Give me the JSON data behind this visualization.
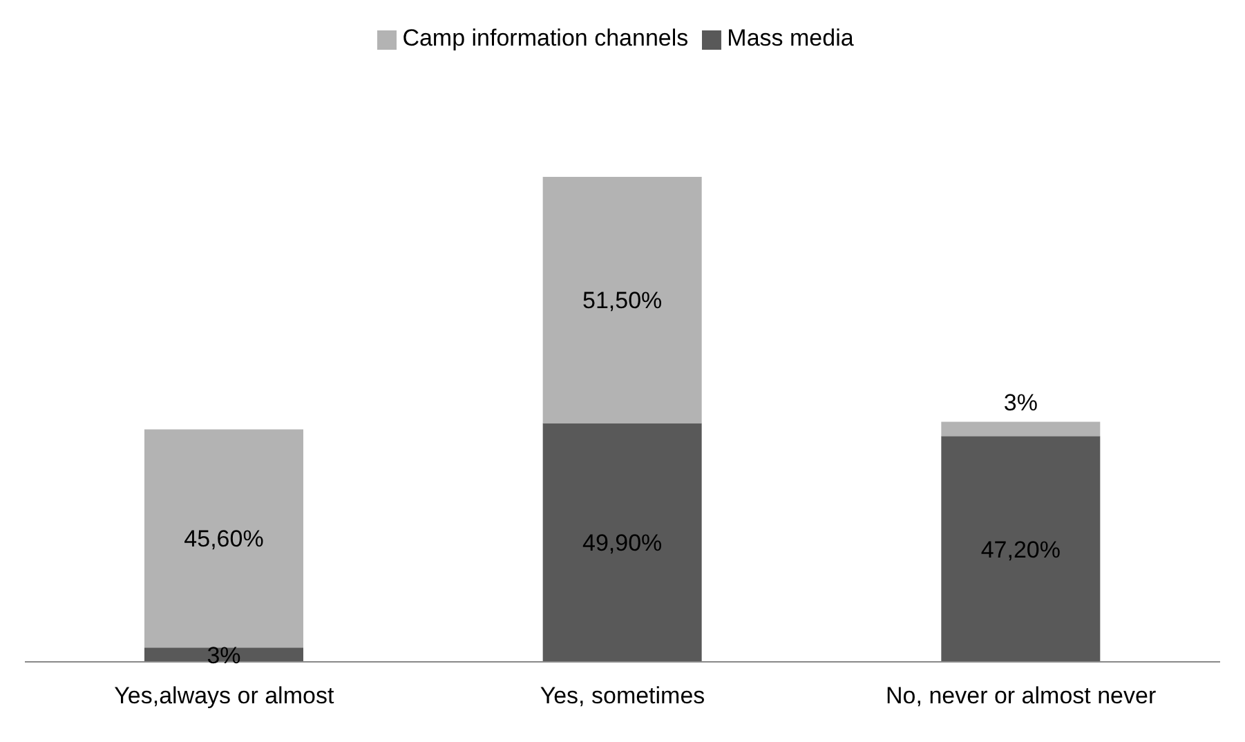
{
  "chart_data": {
    "type": "bar",
    "stacked": true,
    "categories": [
      "Yes,always or almost",
      "Yes, sometimes",
      "No, never or almost never"
    ],
    "series": [
      {
        "name": "Mass media",
        "color": "#595959",
        "values": [
          3,
          49.9,
          47.2
        ],
        "value_labels": [
          "3%",
          "49,90%",
          "47,20%"
        ]
      },
      {
        "name": "Camp information channels",
        "color": "#b3b3b3",
        "values": [
          45.6,
          51.5,
          3
        ],
        "value_labels": [
          "45,60%",
          "51,50%",
          "3%"
        ]
      }
    ],
    "legend": "top",
    "grid": false
  }
}
